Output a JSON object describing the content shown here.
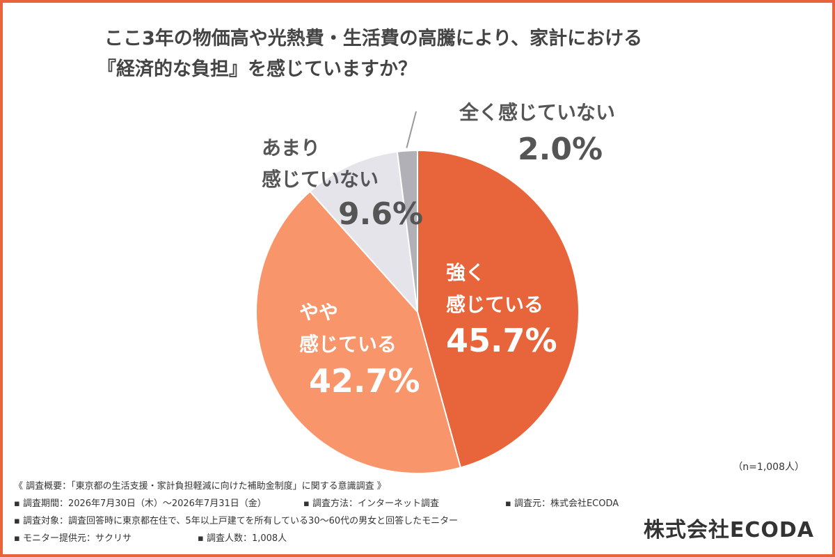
{
  "title": {
    "line1": "ここ3年の物価高や光熱費・生活費の高騰により、家計における",
    "line2": "『経済的な負担』を感じていますか？"
  },
  "chart_data": {
    "type": "pie",
    "title": "ここ3年の物価高や光熱費・生活費の高騰により、家計における『経済的な負担』を感じていますか？",
    "slices": [
      {
        "label_lines": [
          "強く",
          "感じている"
        ],
        "value": 45.7,
        "value_text": "45.7%",
        "color": "#e8643a"
      },
      {
        "label_lines": [
          "やや",
          "感じている"
        ],
        "value": 42.7,
        "value_text": "42.7%",
        "color": "#f9956b"
      },
      {
        "label_lines": [
          "あまり",
          "感じていない"
        ],
        "value": 9.6,
        "value_text": "9.6%",
        "color": "#e4e4ea"
      },
      {
        "label_lines": [
          "全く感じていない"
        ],
        "value": 2.0,
        "value_text": "2.0%",
        "color": "#b0b0b6"
      }
    ],
    "sample_size": "（n=1,008人）"
  },
  "notes": {
    "overview": "《 調査概要：「東京都の生活支援・家計負担軽減に向けた補助金制度」に関する意識調査 》",
    "period": "▪ 調査期間：2026年7月30日（木）〜2026年7月31日（金）",
    "method": "▪ 調査方法：インターネット調査",
    "source": "▪ 調査元：株式会社ECODA",
    "target": "▪ 調査対象：調査回答時に東京都在住で、5年以上戸建てを所有している30〜60代の男女と回答したモニター",
    "provider": "▪ モニター提供元：サクリサ",
    "respondents": "▪ 調査人数：1,008人"
  },
  "logo": "株式会社ECODA"
}
